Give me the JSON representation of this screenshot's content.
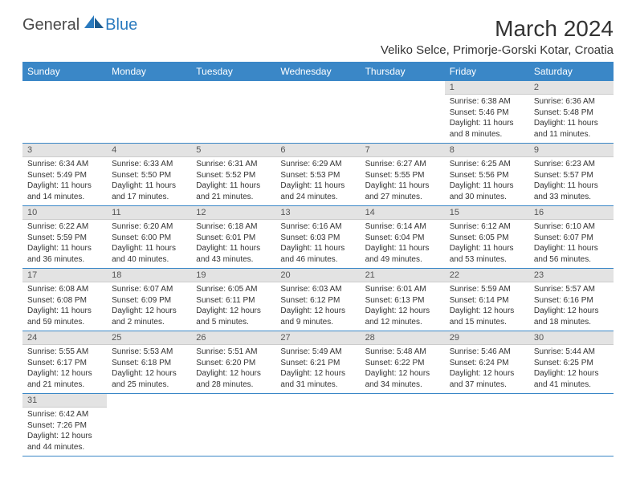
{
  "logo": {
    "general": "General",
    "blue": "Blue"
  },
  "title": "March 2024",
  "location": "Veliko Selce, Primorje-Gorski Kotar, Croatia",
  "header_bg": "#3a87c7",
  "header_fg": "#ffffff",
  "daynum_bg": "#e3e3e3",
  "row_border": "#3a87c7",
  "day_headers": [
    "Sunday",
    "Monday",
    "Tuesday",
    "Wednesday",
    "Thursday",
    "Friday",
    "Saturday"
  ],
  "weeks": [
    [
      {
        "n": "",
        "sr": "",
        "ss": "",
        "dl": ""
      },
      {
        "n": "",
        "sr": "",
        "ss": "",
        "dl": ""
      },
      {
        "n": "",
        "sr": "",
        "ss": "",
        "dl": ""
      },
      {
        "n": "",
        "sr": "",
        "ss": "",
        "dl": ""
      },
      {
        "n": "",
        "sr": "",
        "ss": "",
        "dl": ""
      },
      {
        "n": "1",
        "sr": "Sunrise: 6:38 AM",
        "ss": "Sunset: 5:46 PM",
        "dl": "Daylight: 11 hours and 8 minutes."
      },
      {
        "n": "2",
        "sr": "Sunrise: 6:36 AM",
        "ss": "Sunset: 5:48 PM",
        "dl": "Daylight: 11 hours and 11 minutes."
      }
    ],
    [
      {
        "n": "3",
        "sr": "Sunrise: 6:34 AM",
        "ss": "Sunset: 5:49 PM",
        "dl": "Daylight: 11 hours and 14 minutes."
      },
      {
        "n": "4",
        "sr": "Sunrise: 6:33 AM",
        "ss": "Sunset: 5:50 PM",
        "dl": "Daylight: 11 hours and 17 minutes."
      },
      {
        "n": "5",
        "sr": "Sunrise: 6:31 AM",
        "ss": "Sunset: 5:52 PM",
        "dl": "Daylight: 11 hours and 21 minutes."
      },
      {
        "n": "6",
        "sr": "Sunrise: 6:29 AM",
        "ss": "Sunset: 5:53 PM",
        "dl": "Daylight: 11 hours and 24 minutes."
      },
      {
        "n": "7",
        "sr": "Sunrise: 6:27 AM",
        "ss": "Sunset: 5:55 PM",
        "dl": "Daylight: 11 hours and 27 minutes."
      },
      {
        "n": "8",
        "sr": "Sunrise: 6:25 AM",
        "ss": "Sunset: 5:56 PM",
        "dl": "Daylight: 11 hours and 30 minutes."
      },
      {
        "n": "9",
        "sr": "Sunrise: 6:23 AM",
        "ss": "Sunset: 5:57 PM",
        "dl": "Daylight: 11 hours and 33 minutes."
      }
    ],
    [
      {
        "n": "10",
        "sr": "Sunrise: 6:22 AM",
        "ss": "Sunset: 5:59 PM",
        "dl": "Daylight: 11 hours and 36 minutes."
      },
      {
        "n": "11",
        "sr": "Sunrise: 6:20 AM",
        "ss": "Sunset: 6:00 PM",
        "dl": "Daylight: 11 hours and 40 minutes."
      },
      {
        "n": "12",
        "sr": "Sunrise: 6:18 AM",
        "ss": "Sunset: 6:01 PM",
        "dl": "Daylight: 11 hours and 43 minutes."
      },
      {
        "n": "13",
        "sr": "Sunrise: 6:16 AM",
        "ss": "Sunset: 6:03 PM",
        "dl": "Daylight: 11 hours and 46 minutes."
      },
      {
        "n": "14",
        "sr": "Sunrise: 6:14 AM",
        "ss": "Sunset: 6:04 PM",
        "dl": "Daylight: 11 hours and 49 minutes."
      },
      {
        "n": "15",
        "sr": "Sunrise: 6:12 AM",
        "ss": "Sunset: 6:05 PM",
        "dl": "Daylight: 11 hours and 53 minutes."
      },
      {
        "n": "16",
        "sr": "Sunrise: 6:10 AM",
        "ss": "Sunset: 6:07 PM",
        "dl": "Daylight: 11 hours and 56 minutes."
      }
    ],
    [
      {
        "n": "17",
        "sr": "Sunrise: 6:08 AM",
        "ss": "Sunset: 6:08 PM",
        "dl": "Daylight: 11 hours and 59 minutes."
      },
      {
        "n": "18",
        "sr": "Sunrise: 6:07 AM",
        "ss": "Sunset: 6:09 PM",
        "dl": "Daylight: 12 hours and 2 minutes."
      },
      {
        "n": "19",
        "sr": "Sunrise: 6:05 AM",
        "ss": "Sunset: 6:11 PM",
        "dl": "Daylight: 12 hours and 5 minutes."
      },
      {
        "n": "20",
        "sr": "Sunrise: 6:03 AM",
        "ss": "Sunset: 6:12 PM",
        "dl": "Daylight: 12 hours and 9 minutes."
      },
      {
        "n": "21",
        "sr": "Sunrise: 6:01 AM",
        "ss": "Sunset: 6:13 PM",
        "dl": "Daylight: 12 hours and 12 minutes."
      },
      {
        "n": "22",
        "sr": "Sunrise: 5:59 AM",
        "ss": "Sunset: 6:14 PM",
        "dl": "Daylight: 12 hours and 15 minutes."
      },
      {
        "n": "23",
        "sr": "Sunrise: 5:57 AM",
        "ss": "Sunset: 6:16 PM",
        "dl": "Daylight: 12 hours and 18 minutes."
      }
    ],
    [
      {
        "n": "24",
        "sr": "Sunrise: 5:55 AM",
        "ss": "Sunset: 6:17 PM",
        "dl": "Daylight: 12 hours and 21 minutes."
      },
      {
        "n": "25",
        "sr": "Sunrise: 5:53 AM",
        "ss": "Sunset: 6:18 PM",
        "dl": "Daylight: 12 hours and 25 minutes."
      },
      {
        "n": "26",
        "sr": "Sunrise: 5:51 AM",
        "ss": "Sunset: 6:20 PM",
        "dl": "Daylight: 12 hours and 28 minutes."
      },
      {
        "n": "27",
        "sr": "Sunrise: 5:49 AM",
        "ss": "Sunset: 6:21 PM",
        "dl": "Daylight: 12 hours and 31 minutes."
      },
      {
        "n": "28",
        "sr": "Sunrise: 5:48 AM",
        "ss": "Sunset: 6:22 PM",
        "dl": "Daylight: 12 hours and 34 minutes."
      },
      {
        "n": "29",
        "sr": "Sunrise: 5:46 AM",
        "ss": "Sunset: 6:24 PM",
        "dl": "Daylight: 12 hours and 37 minutes."
      },
      {
        "n": "30",
        "sr": "Sunrise: 5:44 AM",
        "ss": "Sunset: 6:25 PM",
        "dl": "Daylight: 12 hours and 41 minutes."
      }
    ],
    [
      {
        "n": "31",
        "sr": "Sunrise: 6:42 AM",
        "ss": "Sunset: 7:26 PM",
        "dl": "Daylight: 12 hours and 44 minutes."
      },
      {
        "n": "",
        "sr": "",
        "ss": "",
        "dl": ""
      },
      {
        "n": "",
        "sr": "",
        "ss": "",
        "dl": ""
      },
      {
        "n": "",
        "sr": "",
        "ss": "",
        "dl": ""
      },
      {
        "n": "",
        "sr": "",
        "ss": "",
        "dl": ""
      },
      {
        "n": "",
        "sr": "",
        "ss": "",
        "dl": ""
      },
      {
        "n": "",
        "sr": "",
        "ss": "",
        "dl": ""
      }
    ]
  ]
}
